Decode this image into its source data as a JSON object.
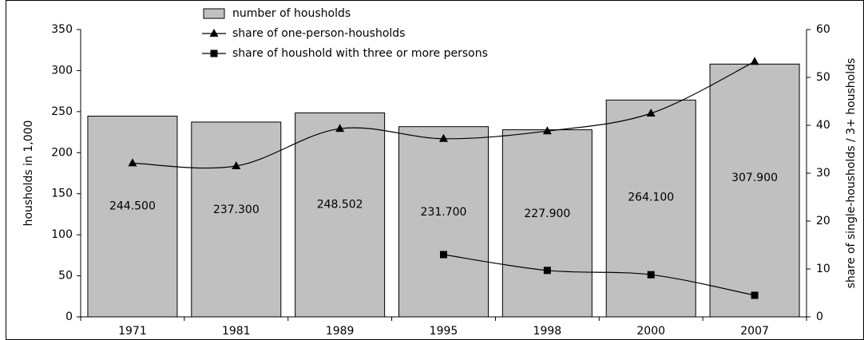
{
  "chart_data": {
    "type": "bar-line",
    "categories": [
      "1971",
      "1981",
      "1989",
      "1995",
      "1998",
      "2000",
      "2007"
    ],
    "ylabel": "housholds in 1,000",
    "y2label": "share of single-housholds / 3+ housholds",
    "ylim": [
      0,
      350
    ],
    "yticks": [
      0,
      50,
      100,
      150,
      200,
      250,
      300,
      350
    ],
    "y2lim": [
      0,
      60
    ],
    "y2ticks": [
      0,
      10,
      20,
      30,
      40,
      50,
      60
    ],
    "legend": "top-left",
    "series": [
      {
        "name": "number of housholds",
        "type": "bar",
        "color": "#c0c0c0",
        "values": [
          244.5,
          237.3,
          248.502,
          231.7,
          227.9,
          264.1,
          307.9
        ],
        "value_labels": [
          "244.500",
          "237.300",
          "248.502",
          "231.700",
          "227.900",
          "264.100",
          "307.900"
        ]
      },
      {
        "name": "share of one-person-housholds",
        "type": "line",
        "axis": "y2",
        "marker": "triangle",
        "color": "#000000",
        "values": [
          32.1,
          31.5,
          39.3,
          37.2,
          38.8,
          42.5,
          53.3
        ]
      },
      {
        "name": "share of houshold with three or more persons",
        "type": "line",
        "axis": "y2",
        "marker": "square",
        "color": "#000000",
        "values": [
          null,
          null,
          null,
          13.0,
          9.7,
          8.8,
          4.5
        ]
      }
    ]
  }
}
